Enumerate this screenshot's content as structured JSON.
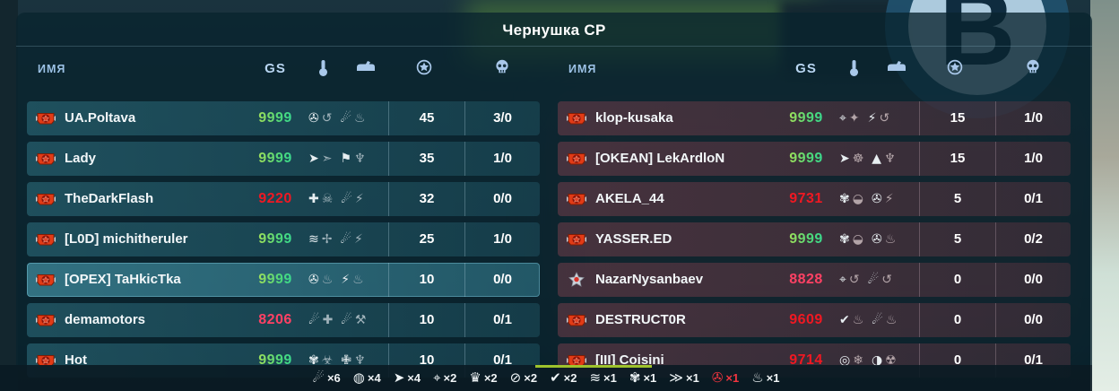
{
  "title": "Чернушка СР",
  "point_marker": {
    "letter": "В"
  },
  "columns": {
    "name_label": "ИМЯ",
    "gs_label": "GS",
    "header_icons": [
      "turret-icon",
      "hull-icon",
      "star-icon",
      "skull-icon"
    ]
  },
  "colors": {
    "gs_good_gradient": [
      "#d7e544",
      "#23dcae"
    ],
    "gs_bad": "#f01822",
    "gs_low": "#ff4164",
    "ally_row": "rgba(47,114,130,0.55)",
    "enemy_row": "rgba(136,66,80,0.45)",
    "legend_red": "#f2353f"
  },
  "teams": {
    "left": {
      "players": [
        {
          "name": "UA.Poltava",
          "gs": "9999",
          "gs_tone": "good",
          "badge": "red",
          "highlighted": false,
          "turret_icons": [
            "reel",
            "orbit"
          ],
          "hull_icons": [
            "comet",
            "flame"
          ],
          "score": "45",
          "frags": "3/0"
        },
        {
          "name": "Lady",
          "gs": "9999",
          "gs_tone": "good",
          "badge": "red",
          "highlighted": false,
          "turret_icons": [
            "rocket",
            "rocket2"
          ],
          "hull_icons": [
            "banner",
            "wings"
          ],
          "score": "35",
          "frags": "1/0"
        },
        {
          "name": "TheDarkFlash",
          "gs": "9220",
          "gs_tone": "bad",
          "badge": "red",
          "highlighted": false,
          "turret_icons": [
            "crossbolt",
            "skullspider"
          ],
          "hull_icons": [
            "comet",
            "bolt"
          ],
          "score": "32",
          "frags": "0/0"
        },
        {
          "name": "[L0D] michitheruler",
          "gs": "9999",
          "gs_tone": "good",
          "badge": "red",
          "highlighted": false,
          "turret_icons": [
            "smoke",
            "darts"
          ],
          "hull_icons": [
            "comet",
            "bolt"
          ],
          "score": "25",
          "frags": "1/0"
        },
        {
          "name": "[OPEX] TaHkicTka",
          "gs": "9999",
          "gs_tone": "good",
          "badge": "red",
          "highlighted": true,
          "turret_icons": [
            "reel",
            "flame"
          ],
          "hull_icons": [
            "boltcircle",
            "flame"
          ],
          "score": "10",
          "frags": "0/0"
        },
        {
          "name": "demamotors",
          "gs": "8206",
          "gs_tone": "low",
          "badge": "red",
          "highlighted": false,
          "turret_icons": [
            "comet",
            "medcross"
          ],
          "hull_icons": [
            "comet",
            "wrench"
          ],
          "score": "10",
          "frags": "0/1"
        },
        {
          "name": "Hot",
          "gs": "9999",
          "gs_tone": "good",
          "badge": "red",
          "highlighted": false,
          "turret_icons": [
            "claws",
            "biohazard"
          ],
          "hull_icons": [
            "shieldcross",
            "wings"
          ],
          "score": "10",
          "frags": "0/1"
        }
      ]
    },
    "right": {
      "players": [
        {
          "name": "klop-kusaka",
          "gs": "9999",
          "gs_tone": "good",
          "badge": "red",
          "highlighted": false,
          "turret_icons": [
            "satellite",
            "starflash"
          ],
          "hull_icons": [
            "boltcircle",
            "orbit"
          ],
          "score": "15",
          "frags": "1/0"
        },
        {
          "name": "[OKEAN] LekArdloN",
          "gs": "9999",
          "gs_tone": "good",
          "badge": "red",
          "highlighted": false,
          "turret_icons": [
            "rocket",
            "paw"
          ],
          "hull_icons": [
            "arrowsup",
            "wings"
          ],
          "score": "15",
          "frags": "1/0"
        },
        {
          "name": "AKELA_44",
          "gs": "9731",
          "gs_tone": "bad",
          "badge": "red",
          "highlighted": false,
          "turret_icons": [
            "claws",
            "helmet"
          ],
          "hull_icons": [
            "reel",
            "bolt"
          ],
          "score": "5",
          "frags": "0/1"
        },
        {
          "name": "YASSER.ED",
          "gs": "9999",
          "gs_tone": "good",
          "badge": "red",
          "highlighted": false,
          "turret_icons": [
            "claws",
            "helmet"
          ],
          "hull_icons": [
            "reel",
            "flame"
          ],
          "score": "5",
          "frags": "0/2"
        },
        {
          "name": "NazarNysanbaev",
          "gs": "8828",
          "gs_tone": "low",
          "badge": "silver",
          "highlighted": false,
          "turret_icons": [
            "satellite",
            "orbit"
          ],
          "hull_icons": [
            "comet",
            "orbit"
          ],
          "score": "0",
          "frags": "0/0"
        },
        {
          "name": "DESTRUCT0R",
          "gs": "9609",
          "gs_tone": "bad",
          "badge": "red",
          "highlighted": false,
          "turret_icons": [
            "check",
            "flame"
          ],
          "hull_icons": [
            "comet",
            "flame"
          ],
          "score": "0",
          "frags": "0/0"
        },
        {
          "name": "[III] Coisini",
          "gs": "9714",
          "gs_tone": "bad",
          "badge": "red",
          "highlighted": false,
          "turret_icons": [
            "crosshair",
            "snowflake"
          ],
          "hull_icons": [
            "orb",
            "radiation"
          ],
          "score": "0",
          "frags": "0/1"
        }
      ]
    }
  },
  "legend": {
    "items": [
      {
        "icon": "comet",
        "count": "×6",
        "red": false
      },
      {
        "icon": "ballpercent",
        "count": "×4",
        "red": false
      },
      {
        "icon": "rocket",
        "count": "×4",
        "red": false
      },
      {
        "icon": "satellite",
        "count": "×2",
        "red": false
      },
      {
        "icon": "crown",
        "count": "×2",
        "red": false
      },
      {
        "icon": "crossedcircle",
        "count": "×2",
        "red": false
      },
      {
        "icon": "check",
        "count": "×2",
        "red": false
      },
      {
        "icon": "smoke",
        "count": "×1",
        "red": false
      },
      {
        "icon": "claws",
        "count": "×1",
        "red": false
      },
      {
        "icon": "speedlines",
        "count": "×1",
        "red": false
      },
      {
        "icon": "redreel",
        "count": "×1",
        "red": true
      },
      {
        "icon": "flame",
        "count": "×1",
        "red": false
      }
    ]
  },
  "icon_glyphs": {
    "reel": "✇",
    "orbit": "↺",
    "comet": "☄",
    "flame": "♨",
    "rocket": "➤",
    "rocket2": "➣",
    "banner": "⚑",
    "wings": "♆",
    "crossbolt": "✚",
    "skullspider": "☠",
    "smoke": "≋",
    "darts": "✢",
    "bolt": "⚡",
    "boltcircle": "⚡",
    "medcross": "✚",
    "wrench": "⚒",
    "claws": "✾",
    "biohazard": "☣",
    "shieldcross": "✙",
    "satellite": "⌖",
    "starflash": "✦",
    "paw": "☸",
    "arrowsup": "▲",
    "check": "✔",
    "crosshair": "◎",
    "snowflake": "❄",
    "orb": "◑",
    "radiation": "☢",
    "helmet": "◒",
    "ballpercent": "◍",
    "crown": "♛",
    "crossedcircle": "⊘",
    "speedlines": "≫",
    "redreel": "✇"
  }
}
